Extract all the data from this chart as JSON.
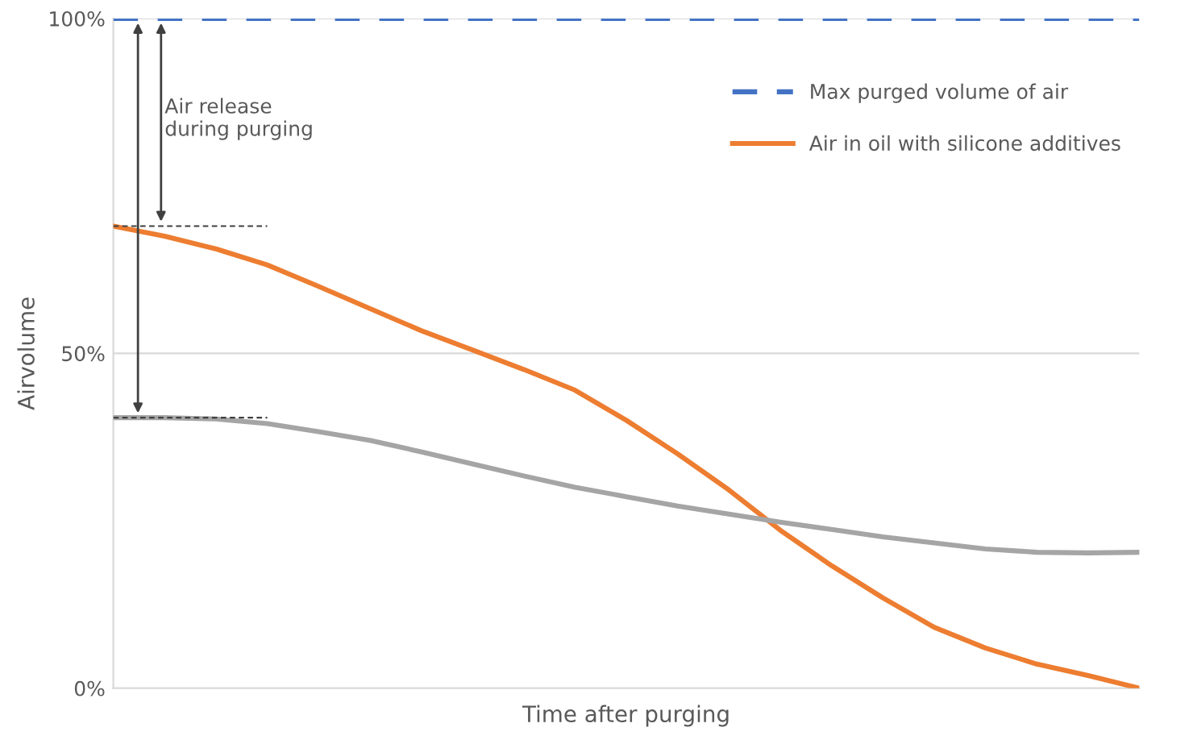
{
  "chart_data": {
    "type": "line",
    "xlabel": "Time after purging",
    "ylabel": "Airvolume",
    "categories": [
      null,
      null,
      null,
      null,
      null,
      null,
      null,
      null,
      null,
      null,
      null,
      null,
      null,
      null,
      null,
      null,
      null,
      null,
      null,
      null,
      null
    ],
    "series": [
      {
        "name": "Max purged volume of air",
        "color": "#4472c4",
        "line_style": "dashed",
        "values": [
          100,
          100,
          100,
          100,
          100,
          100,
          100,
          100,
          100,
          100,
          100,
          100,
          100,
          100,
          100,
          100,
          100,
          100,
          100,
          100,
          100
        ]
      },
      {
        "name": "Air in oil with silicone additives",
        "color": "#ed7d31",
        "line_style": "solid",
        "values": [
          69,
          67.5,
          65.6,
          63.2,
          60,
          56.7,
          53.4,
          50.5,
          47.6,
          44.5,
          40,
          35,
          29.6,
          23.6,
          18.3,
          13.5,
          9.1,
          6,
          3.6,
          1.9,
          0
        ]
      },
      {
        "color": "#a5a5a5",
        "line_style": "solid",
        "values": [
          40.4,
          40.4,
          40.2,
          39.5,
          38.3,
          37,
          35.3,
          33.5,
          31.7,
          30,
          28.6,
          27.2,
          26,
          24.8,
          23.7,
          22.6,
          21.7,
          20.8,
          20.3,
          20.2,
          20.3
        ]
      },
      {
        "color": "#404040",
        "line_style": "dotted",
        "values": [
          69,
          69,
          69,
          69,
          null,
          null,
          null,
          null,
          null,
          null,
          null,
          null,
          null,
          null,
          null,
          null,
          null,
          null,
          null,
          null,
          null
        ]
      },
      {
        "color": "#404040",
        "line_style": "dotted",
        "values": [
          40.4,
          40.4,
          40.4,
          40.4,
          null,
          null,
          null,
          null,
          null,
          null,
          null,
          null,
          null,
          null,
          null,
          null,
          null,
          null,
          null,
          null,
          null
        ]
      }
    ],
    "ylim": [
      0,
      100
    ],
    "yticks": [
      {
        "value": 0,
        "label": "0%"
      },
      {
        "value": 50,
        "label": "50%"
      },
      {
        "value": 100,
        "label": "100%"
      }
    ],
    "grid": "y",
    "legend": "top right",
    "marker": "none",
    "annotations": [
      "Air release\nduring purging"
    ]
  }
}
